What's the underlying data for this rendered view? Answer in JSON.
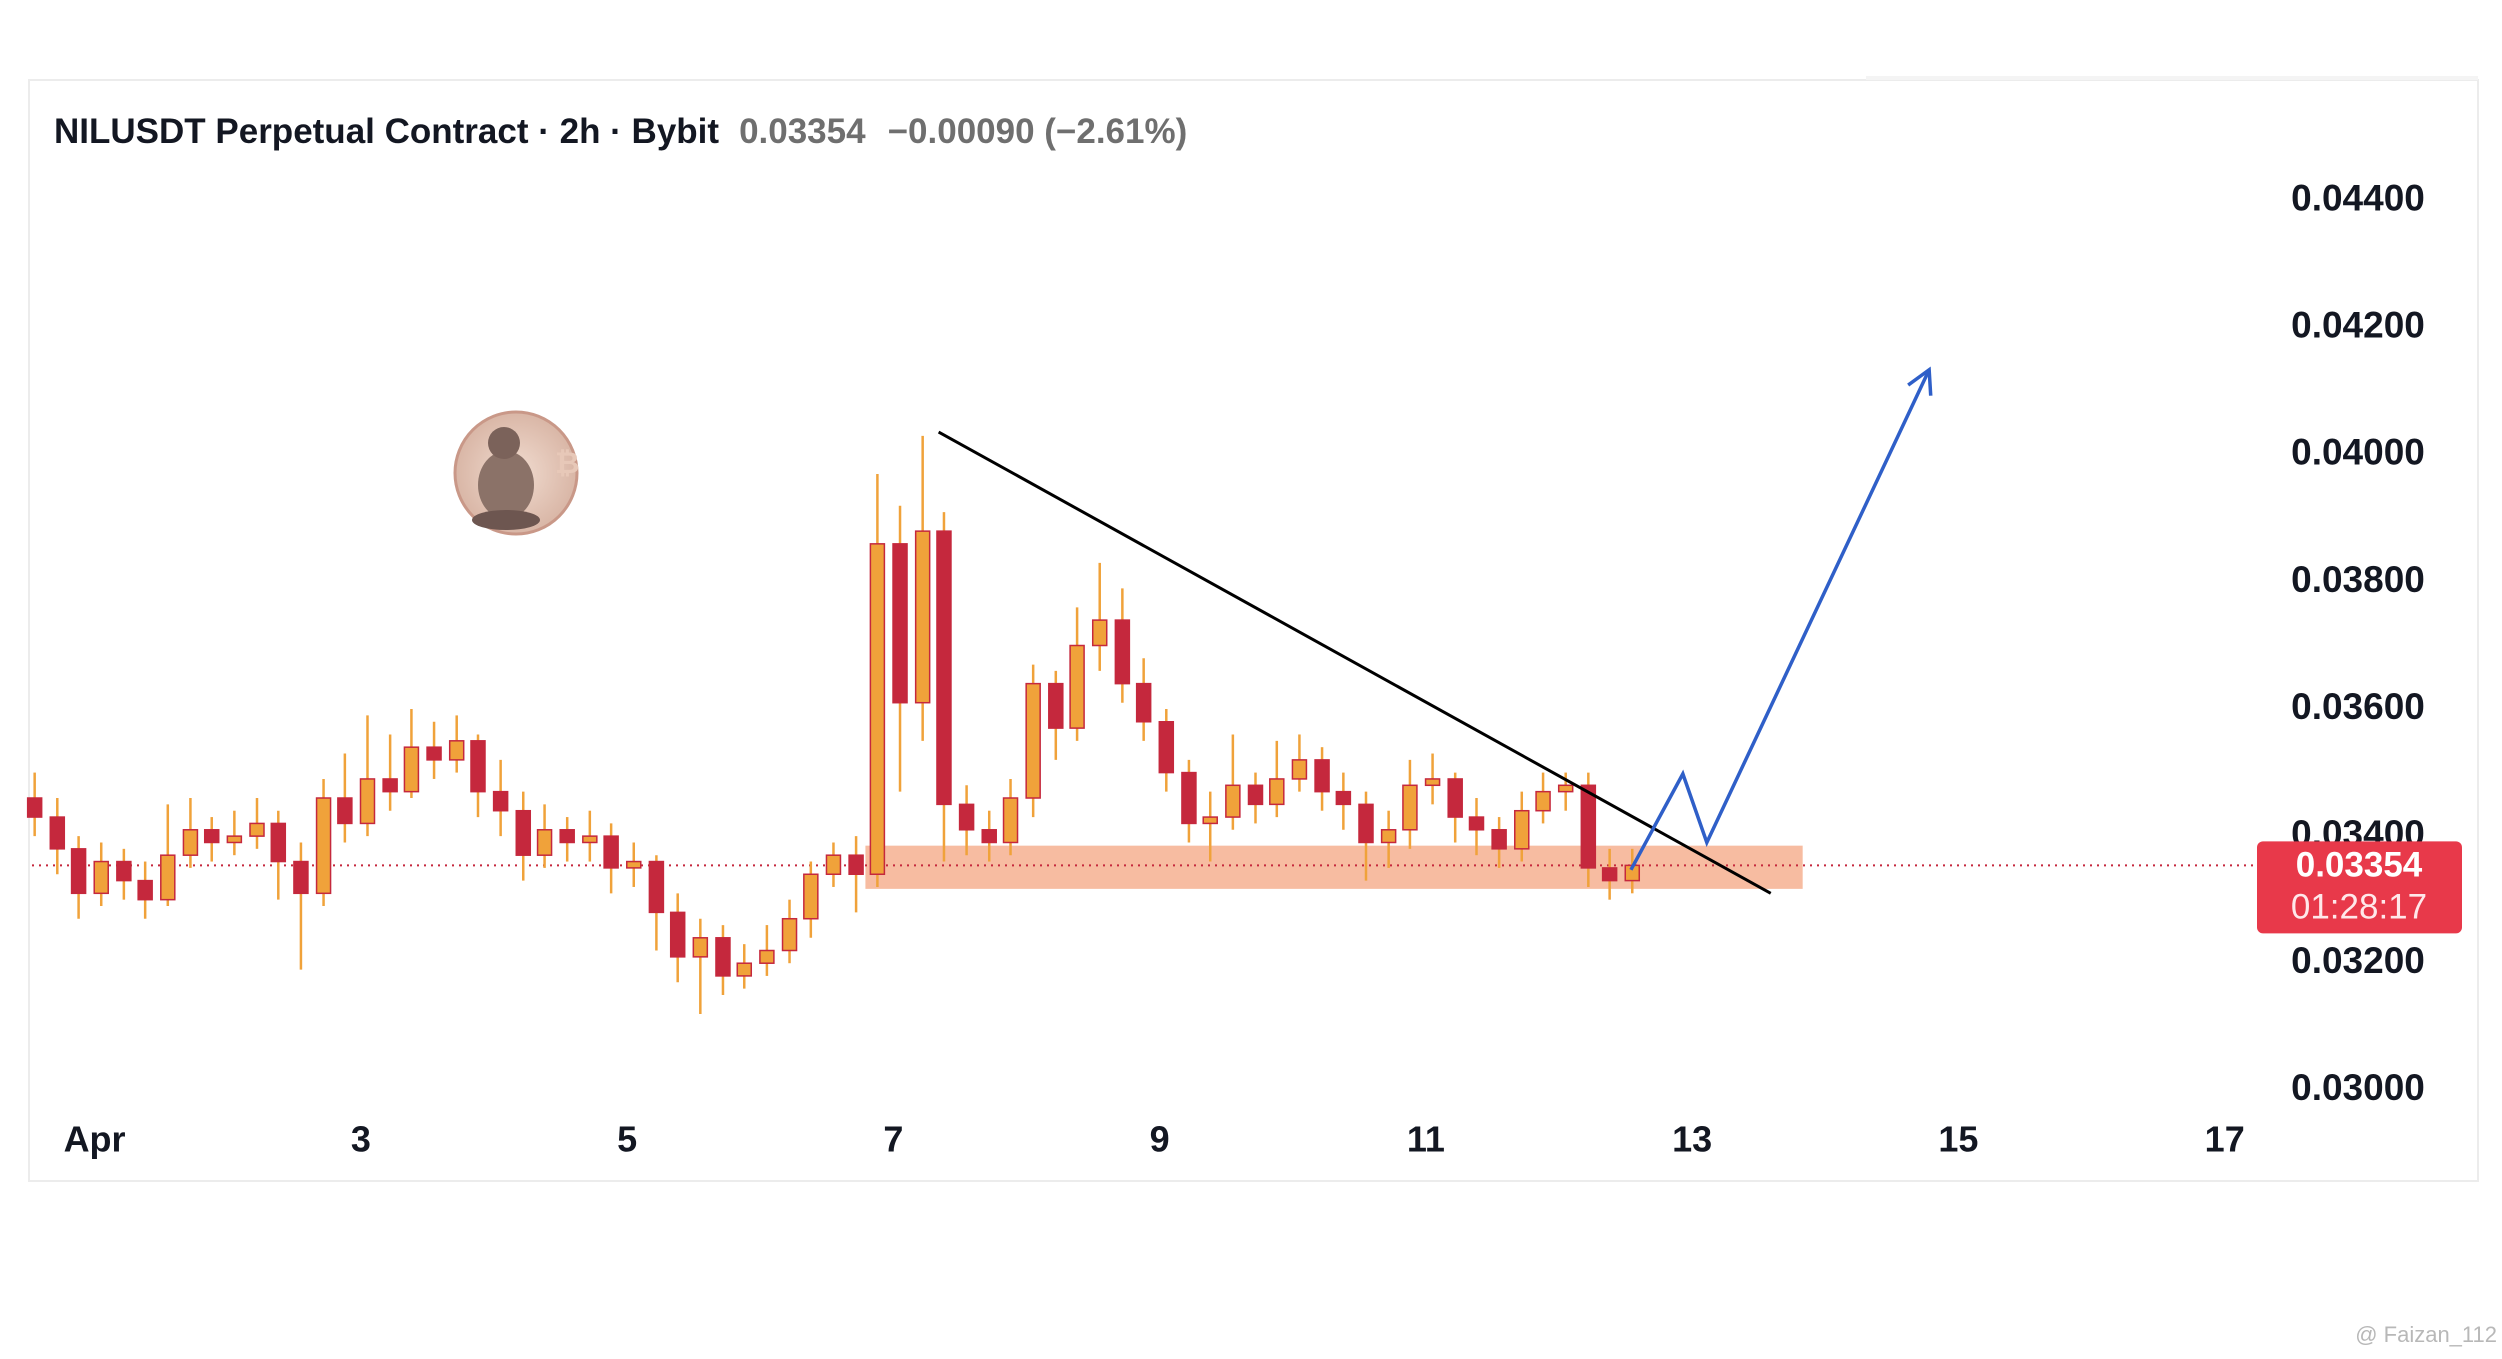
{
  "chart_data": {
    "type": "candlestick",
    "title": "NILUSDT Perpetual Contract · 2h · Bybit",
    "change_label": "−0.00090 (−2.61%)",
    "last_price": 0.03354,
    "countdown": "01:28:17",
    "watermark": "@ Faizan_112",
    "up_color": "#f0a23a",
    "down_color": "#c5283d",
    "xlim": [
      0.53,
      17.22
    ],
    "ylim": [
      0.0298,
      0.0459
    ],
    "xticks": [
      {
        "value": 1,
        "label": "Apr"
      },
      3,
      5,
      7,
      9,
      11,
      13,
      15,
      17
    ],
    "yticks": [
      {
        "value": 0.03,
        "label": "0.03000"
      },
      {
        "value": 0.032,
        "label": "0.03200"
      },
      {
        "value": 0.034,
        "label": "0.03400"
      },
      {
        "value": 0.036,
        "label": "0.03600"
      },
      {
        "value": 0.038,
        "label": "0.03800"
      },
      {
        "value": 0.04,
        "label": "0.04000"
      },
      {
        "value": 0.042,
        "label": "0.04200"
      },
      {
        "value": 0.044,
        "label": "0.04400"
      }
    ],
    "x": [
      0.55,
      0.72,
      0.88,
      1.05,
      1.22,
      1.38,
      1.55,
      1.72,
      1.88,
      2.05,
      2.22,
      2.38,
      2.55,
      2.72,
      2.88,
      3.05,
      3.22,
      3.38,
      3.55,
      3.72,
      3.88,
      4.05,
      4.22,
      4.38,
      4.55,
      4.72,
      4.88,
      5.05,
      5.22,
      5.38,
      5.55,
      5.72,
      5.88,
      6.05,
      6.22,
      6.38,
      6.55,
      6.72,
      6.88,
      7.05,
      7.22,
      7.38,
      7.55,
      7.72,
      7.88,
      8.05,
      8.22,
      8.38,
      8.55,
      8.72,
      8.88,
      9.05,
      9.22,
      9.38,
      9.55,
      9.72,
      9.88,
      10.05,
      10.22,
      10.38,
      10.55,
      10.72,
      10.88,
      11.05,
      11.22,
      11.38,
      11.55,
      11.72,
      11.88,
      12.05,
      12.22,
      12.38,
      12.55
    ],
    "open": [
      0.0346,
      0.0343,
      0.0338,
      0.0331,
      0.0336,
      0.0333,
      0.033,
      0.0337,
      0.0341,
      0.0339,
      0.034,
      0.0342,
      0.0336,
      0.0331,
      0.0346,
      0.0342,
      0.0349,
      0.0347,
      0.0354,
      0.0352,
      0.0355,
      0.0347,
      0.0344,
      0.0337,
      0.0341,
      0.0339,
      0.034,
      0.0335,
      0.0336,
      0.0328,
      0.0321,
      0.0324,
      0.0318,
      0.032,
      0.0322,
      0.0327,
      0.0334,
      0.0337,
      0.0334,
      0.0386,
      0.0361,
      0.0388,
      0.0345,
      0.0341,
      0.0339,
      0.0346,
      0.0364,
      0.0357,
      0.037,
      0.0374,
      0.0364,
      0.0358,
      0.035,
      0.0342,
      0.0343,
      0.0348,
      0.0345,
      0.0349,
      0.0352,
      0.0347,
      0.0345,
      0.0339,
      0.0341,
      0.0348,
      0.0349,
      0.0343,
      0.0341,
      0.0338,
      0.0344,
      0.0347,
      0.0348,
      0.0335,
      0.0333
    ],
    "high": [
      0.035,
      0.0346,
      0.034,
      0.0339,
      0.0338,
      0.0336,
      0.0345,
      0.0346,
      0.0343,
      0.0344,
      0.0346,
      0.0344,
      0.0339,
      0.0349,
      0.0353,
      0.0359,
      0.0356,
      0.036,
      0.0358,
      0.0359,
      0.0356,
      0.0352,
      0.0347,
      0.0345,
      0.0343,
      0.0344,
      0.0342,
      0.0339,
      0.0337,
      0.0331,
      0.0327,
      0.0326,
      0.0323,
      0.0326,
      0.033,
      0.0336,
      0.0339,
      0.034,
      0.0397,
      0.0392,
      0.0403,
      0.0391,
      0.0348,
      0.0344,
      0.0349,
      0.0367,
      0.0366,
      0.0376,
      0.0383,
      0.0379,
      0.0368,
      0.036,
      0.0352,
      0.0347,
      0.0356,
      0.035,
      0.0355,
      0.0356,
      0.0354,
      0.035,
      0.0347,
      0.0344,
      0.0352,
      0.0353,
      0.035,
      0.0346,
      0.0343,
      0.0347,
      0.035,
      0.035,
      0.035,
      0.0338,
      0.0338
    ],
    "low": [
      0.034,
      0.0334,
      0.0327,
      0.0329,
      0.033,
      0.0327,
      0.0329,
      0.0335,
      0.0336,
      0.0337,
      0.0338,
      0.033,
      0.0319,
      0.0329,
      0.0339,
      0.034,
      0.0344,
      0.0346,
      0.0349,
      0.035,
      0.0343,
      0.034,
      0.0333,
      0.0335,
      0.0336,
      0.0336,
      0.0331,
      0.0332,
      0.0322,
      0.0317,
      0.0312,
      0.0315,
      0.0316,
      0.0318,
      0.032,
      0.0324,
      0.0332,
      0.0328,
      0.0332,
      0.0347,
      0.0355,
      0.0336,
      0.0337,
      0.0336,
      0.0337,
      0.0343,
      0.0352,
      0.0355,
      0.0366,
      0.0361,
      0.0355,
      0.0347,
      0.0339,
      0.0336,
      0.0341,
      0.0342,
      0.0343,
      0.0347,
      0.0344,
      0.0341,
      0.0333,
      0.0335,
      0.0338,
      0.0345,
      0.0339,
      0.0337,
      0.0335,
      0.0336,
      0.0342,
      0.0344,
      0.0332,
      0.033,
      0.0331
    ],
    "close": [
      0.0343,
      0.0338,
      0.0331,
      0.0336,
      0.0333,
      0.033,
      0.0337,
      0.0341,
      0.0339,
      0.034,
      0.0342,
      0.0336,
      0.0331,
      0.0346,
      0.0342,
      0.0349,
      0.0347,
      0.0354,
      0.0352,
      0.0355,
      0.0347,
      0.0344,
      0.0337,
      0.0341,
      0.0339,
      0.034,
      0.0335,
      0.0336,
      0.0328,
      0.0321,
      0.0324,
      0.0318,
      0.032,
      0.0322,
      0.0327,
      0.0334,
      0.0337,
      0.0334,
      0.0386,
      0.0361,
      0.0388,
      0.0345,
      0.0341,
      0.0339,
      0.0346,
      0.0364,
      0.0357,
      0.037,
      0.0374,
      0.0364,
      0.0358,
      0.035,
      0.0342,
      0.0343,
      0.0348,
      0.0345,
      0.0349,
      0.0352,
      0.0347,
      0.0345,
      0.0339,
      0.0341,
      0.0348,
      0.0349,
      0.0343,
      0.0341,
      0.0338,
      0.0344,
      0.0347,
      0.0348,
      0.0335,
      0.0333,
      0.03354
    ],
    "support_zone": {
      "x": [
        6.79,
        13.83
      ],
      "y": [
        0.03317,
        0.03385
      ],
      "color": "#f4a582"
    },
    "trendline": {
      "x": [
        7.34,
        13.59
      ],
      "y": [
        0.04036,
        0.0331
      ],
      "color": "#000000"
    },
    "projection": {
      "x": [
        12.54,
        12.93,
        13.11,
        14.78
      ],
      "y": [
        0.03347,
        0.03498,
        0.0339,
        0.04134
      ],
      "color": "#2f5fc8"
    }
  }
}
